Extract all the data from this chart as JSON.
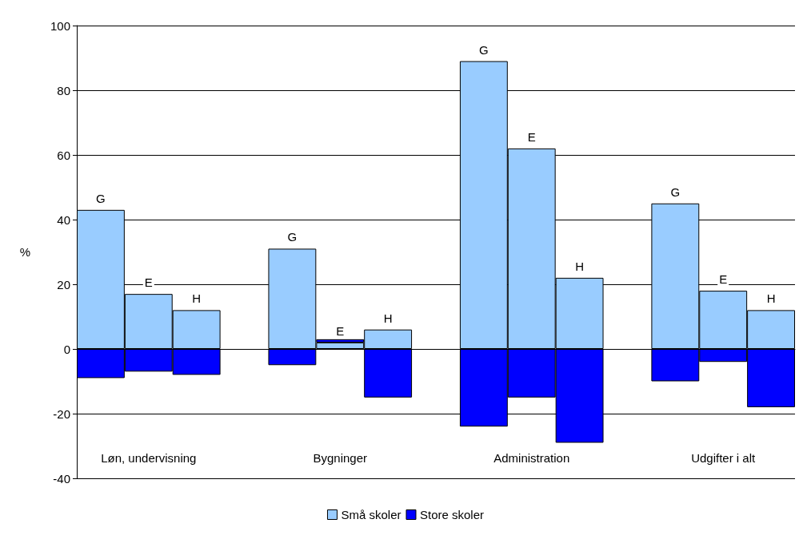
{
  "chart_data": {
    "type": "bar",
    "stacked": true,
    "ylabel": "%",
    "categories": [
      null,
      "Løn, undervisning",
      null,
      null,
      null,
      "Bygninger",
      null,
      null,
      null,
      "Administration",
      null,
      null,
      null,
      "Udgifter i alt",
      null
    ],
    "series": [
      {
        "name": "Små skoler",
        "color": "#99ccff",
        "values": [
          43,
          17,
          12,
          null,
          31,
          2,
          6,
          null,
          89,
          62,
          22,
          null,
          45,
          18,
          12
        ],
        "value_labels": [
          "G",
          "E",
          "H",
          null,
          "G",
          "E",
          "H",
          null,
          "G",
          "E",
          "H",
          null,
          "G",
          "E",
          "H"
        ]
      },
      {
        "name": "Store skoler",
        "color": "#0000ff",
        "values": [
          -9,
          -7,
          -8,
          null,
          -5,
          1,
          -15,
          null,
          -24,
          -15,
          -29,
          null,
          -10,
          -4,
          -18
        ]
      }
    ],
    "ylim": [
      -40,
      100
    ],
    "yticks": [
      -40,
      -20,
      0,
      20,
      40,
      60,
      80,
      100
    ],
    "grid": "y",
    "legend": "bottom"
  }
}
